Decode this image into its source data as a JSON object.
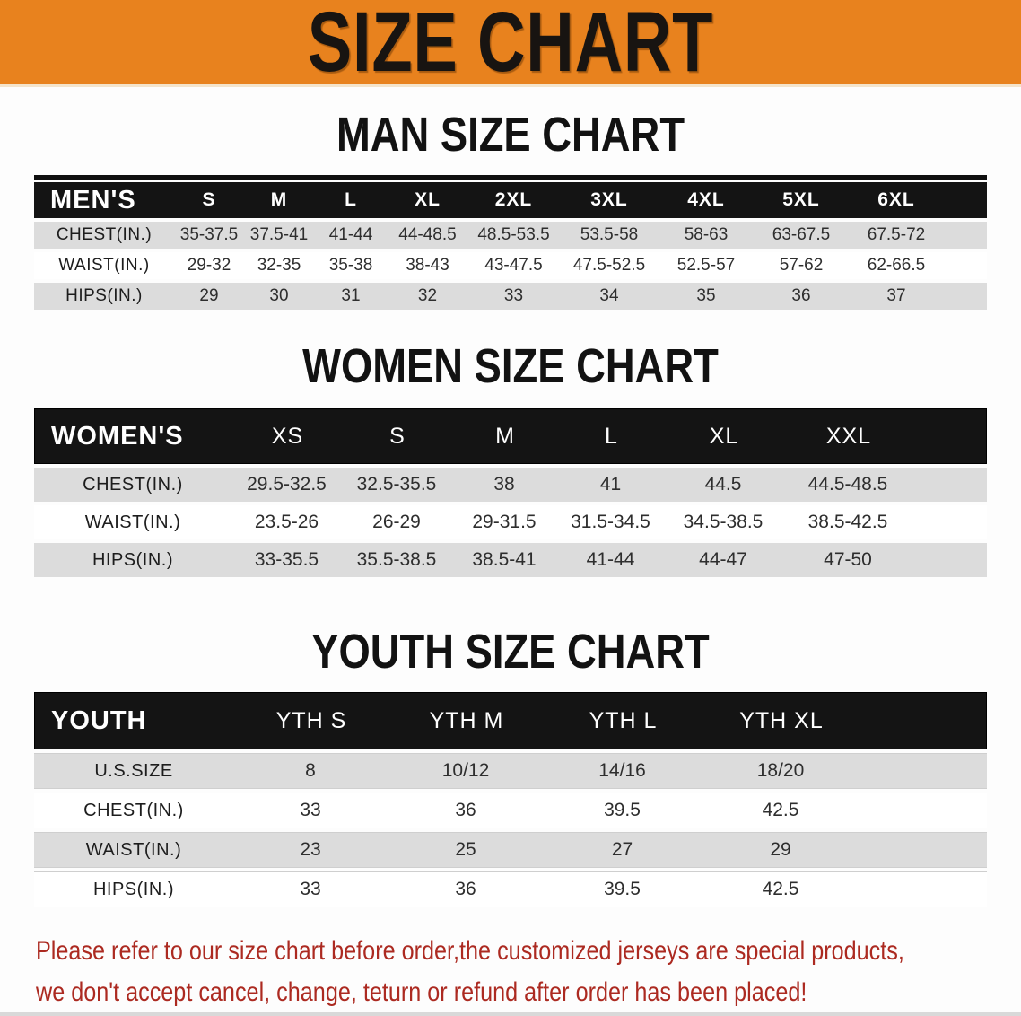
{
  "banner": {
    "title": "SIZE CHART"
  },
  "colors": {
    "banner_bg": "#e8821e",
    "table_header_bg": "#141414",
    "row_stripe": "#dcdcdc",
    "note_red": "#ac2a21"
  },
  "men": {
    "heading": "MAN SIZE CHART",
    "columns": [
      "MEN'S",
      "S",
      "M",
      "L",
      "XL",
      "2XL",
      "3XL",
      "4XL",
      "5XL",
      "6XL"
    ],
    "chest": {
      "label": "CHEST(IN.)",
      "values": [
        "35-37.5",
        "37.5-41",
        "41-44",
        "44-48.5",
        "48.5-53.5",
        "53.5-58",
        "58-63",
        "63-67.5",
        "67.5-72"
      ]
    },
    "waist": {
      "label": "WAIST(IN.)",
      "values": [
        "29-32",
        "32-35",
        "35-38",
        "38-43",
        "43-47.5",
        "47.5-52.5",
        "52.5-57",
        "57-62",
        "62-66.5"
      ]
    },
    "hips": {
      "label": "HIPS(IN.)",
      "values": [
        "29",
        "30",
        "31",
        "32",
        "33",
        "34",
        "35",
        "36",
        "37"
      ]
    }
  },
  "women": {
    "heading": "WOMEN SIZE CHART",
    "columns": [
      "WOMEN'S",
      "XS",
      "S",
      "M",
      "L",
      "XL",
      "XXL"
    ],
    "chest": {
      "label": "CHEST(IN.)",
      "values": [
        "29.5-32.5",
        "32.5-35.5",
        "38",
        "41",
        "44.5",
        "44.5-48.5"
      ]
    },
    "waist": {
      "label": "WAIST(IN.)",
      "values": [
        "23.5-26",
        "26-29",
        "29-31.5",
        "31.5-34.5",
        "34.5-38.5",
        "38.5-42.5"
      ]
    },
    "hips": {
      "label": "HIPS(IN.)",
      "values": [
        "33-35.5",
        "35.5-38.5",
        "38.5-41",
        "41-44",
        "44-47",
        "47-50"
      ]
    }
  },
  "youth": {
    "heading": "YOUTH SIZE CHART",
    "columns": [
      "YOUTH",
      "YTH S",
      "YTH M",
      "YTH L",
      "YTH XL"
    ],
    "ussize": {
      "label": "U.S.SIZE",
      "values": [
        "8",
        "10/12",
        "14/16",
        "18/20"
      ]
    },
    "chest": {
      "label": "CHEST(IN.)",
      "values": [
        "33",
        "36",
        "39.5",
        "42.5"
      ]
    },
    "waist": {
      "label": "WAIST(IN.)",
      "values": [
        "23",
        "25",
        "27",
        "29"
      ]
    },
    "hips": {
      "label": "HIPS(IN.)",
      "values": [
        "33",
        "36",
        "39.5",
        "42.5"
      ]
    }
  },
  "note": {
    "line1": "Please refer to our size chart before order,the customized jerseys are special products,",
    "line2": "we don't accept cancel, change, teturn or refund after order has been placed!"
  }
}
